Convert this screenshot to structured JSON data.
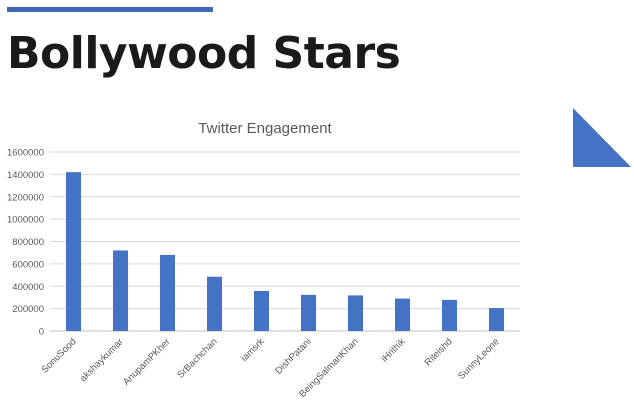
{
  "slide": {
    "title": "Bollywood Stars",
    "accent_color": "#3f67b5"
  },
  "decoration": {
    "corner_shape": "triangle-icon",
    "color": "#4472c4"
  },
  "chart_data": {
    "type": "bar",
    "title": "Twitter Engagement",
    "xlabel": "",
    "ylabel": "",
    "categories": [
      "SonuSood",
      "akshaykumar",
      "AnupamPKher",
      "SrBachchan",
      "iamsrk",
      "DishPatani",
      "BeingSalmanKhan",
      "iHrithik",
      "Riteishd",
      "SunnyLeone"
    ],
    "values": [
      1420000,
      720000,
      680000,
      485000,
      358000,
      323000,
      318000,
      290000,
      278000,
      205000
    ],
    "ylim": [
      0,
      1600000
    ],
    "yticks": [
      0,
      200000,
      400000,
      600000,
      800000,
      1000000,
      1200000,
      1400000,
      1600000
    ],
    "grid": true,
    "legend": "none",
    "bar_color": "#4472c4"
  }
}
